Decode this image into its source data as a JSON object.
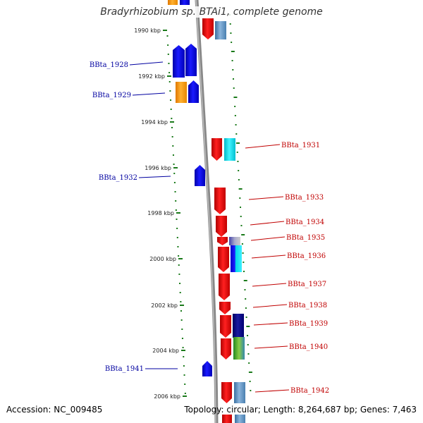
{
  "title": "Bradyrhizobium sp. BTAi1, complete genome",
  "accession": "Accession: NC_009485",
  "topology": "Topology: circular; Length: 8,264,687 bp; Genes: 7,463",
  "colors": {
    "backbone": "#888888",
    "tick": "#1a7a1a",
    "left_label": "#0000a0",
    "right_label": "#c00000",
    "red": "#ee0000",
    "blue": "#0000ee",
    "orange": "#ff9900",
    "cyan": "#00e0ee",
    "steel": "#5a8fc0",
    "navy": "#0a0a88"
  },
  "ticks": [
    "1990 kbp",
    "1992 kbp",
    "1994 kbp",
    "1996 kbp",
    "1998 kbp",
    "2000 kbp",
    "2002 kbp",
    "2004 kbp",
    "2006 kbp"
  ],
  "left_genes": [
    "BBta_1928",
    "BBta_1929",
    "BBta_1932",
    "BBta_1941"
  ],
  "right_genes": [
    "BBta_1931",
    "BBta_1933",
    "BBta_1934",
    "BBta_1935",
    "BBta_1936",
    "BBta_1937",
    "BBta_1938",
    "BBta_1939",
    "BBta_1940",
    "BBta_1942"
  ]
}
